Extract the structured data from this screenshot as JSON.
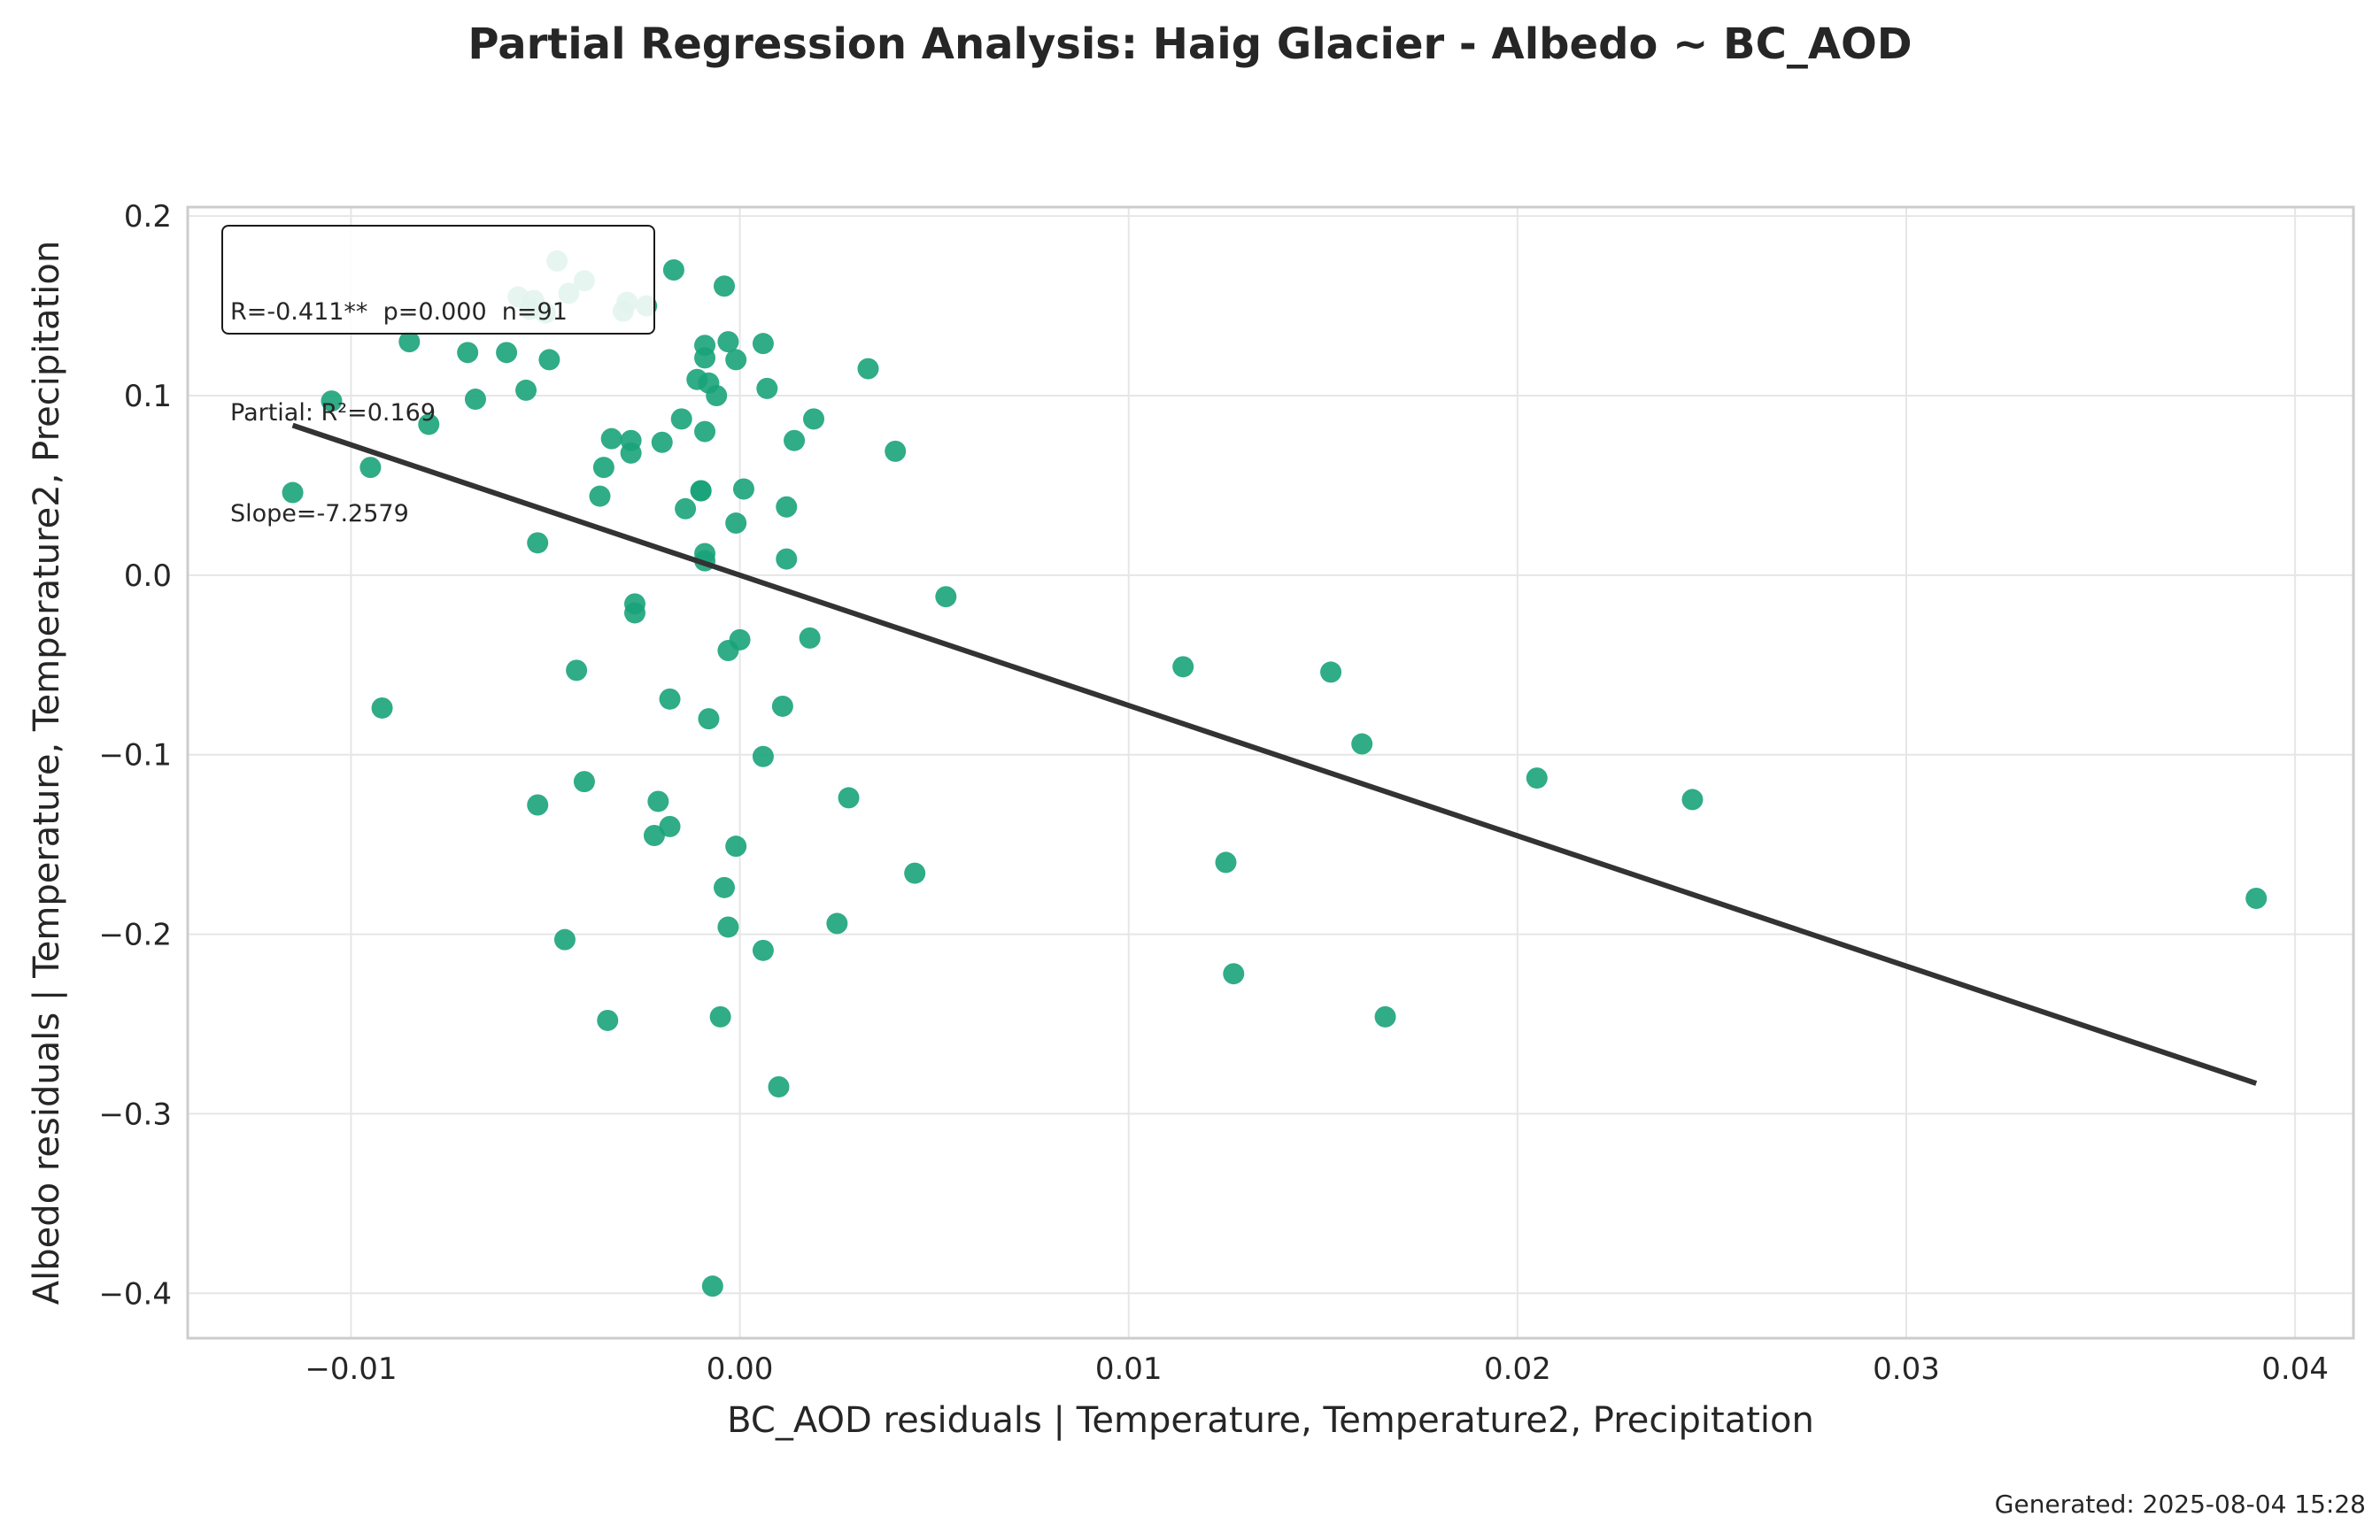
{
  "title": "Partial Regression Analysis: Haig Glacier - Albedo ~ BC_AOD",
  "footer": "Generated: 2025-08-04 15:28",
  "stats_box": {
    "line1": "R=-0.411**  p=0.000  n=91",
    "line2": "Partial: R²=0.169",
    "line3": "Slope=-7.2579"
  },
  "colors": {
    "points": "#1aa37a",
    "fit_line": "#333333",
    "grid": "#e6e6e6",
    "spine": "#cccccc",
    "text": "#262626"
  },
  "chart_data": {
    "type": "scatter",
    "title": "Partial Regression Analysis: Haig Glacier - Albedo ~ BC_AOD",
    "xlabel": "BC_AOD residuals | Temperature, Temperature2, Precipitation",
    "ylabel": "Albedo residuals | Temperature, Temperature2, Precipitation",
    "xlim": [
      -0.0142,
      0.0415
    ],
    "ylim": [
      -0.425,
      0.205
    ],
    "xticks": [
      -0.01,
      0.0,
      0.01,
      0.02,
      0.03,
      0.04
    ],
    "xtick_labels": [
      "−0.01",
      "0.00",
      "0.01",
      "0.02",
      "0.03",
      "0.04"
    ],
    "yticks": [
      0.2,
      0.1,
      0.0,
      -0.1,
      -0.2,
      -0.3,
      -0.4
    ],
    "ytick_labels": [
      "0.2",
      "0.1",
      "0.0",
      "−0.1",
      "−0.2",
      "−0.3",
      "−0.4"
    ],
    "grid": true,
    "fit_line": {
      "slope": -7.2579,
      "x_range": [
        -0.0115,
        0.039
      ]
    },
    "points": [
      [
        -0.0115,
        0.046
      ],
      [
        -0.0105,
        0.097
      ],
      [
        -0.0095,
        0.06
      ],
      [
        -0.0092,
        -0.074
      ],
      [
        -0.0085,
        0.13
      ],
      [
        -0.008,
        0.084
      ],
      [
        -0.007,
        0.124
      ],
      [
        -0.0068,
        0.098
      ],
      [
        -0.006,
        0.124
      ],
      [
        -0.0057,
        0.155
      ],
      [
        -0.0055,
        0.103
      ],
      [
        -0.0054,
        0.148
      ],
      [
        -0.0053,
        0.153
      ],
      [
        -0.0052,
        0.018
      ],
      [
        -0.0052,
        -0.128
      ],
      [
        -0.005,
        0.146
      ],
      [
        -0.0049,
        0.12
      ],
      [
        -0.0047,
        0.175
      ],
      [
        -0.0045,
        -0.203
      ],
      [
        -0.0044,
        0.157
      ],
      [
        -0.0042,
        -0.053
      ],
      [
        -0.004,
        0.164
      ],
      [
        -0.004,
        -0.115
      ],
      [
        -0.0036,
        0.044
      ],
      [
        -0.0035,
        0.06
      ],
      [
        -0.0034,
        -0.248
      ],
      [
        -0.0033,
        0.076
      ],
      [
        -0.003,
        0.147
      ],
      [
        -0.0029,
        0.152
      ],
      [
        -0.0028,
        0.075
      ],
      [
        -0.0028,
        0.068
      ],
      [
        -0.0027,
        -0.016
      ],
      [
        -0.0027,
        -0.021
      ],
      [
        -0.0024,
        0.15
      ],
      [
        -0.0022,
        -0.145
      ],
      [
        -0.0021,
        -0.126
      ],
      [
        -0.002,
        0.074
      ],
      [
        -0.0018,
        -0.14
      ],
      [
        -0.0018,
        -0.069
      ],
      [
        -0.0017,
        0.17
      ],
      [
        -0.0015,
        0.087
      ],
      [
        -0.0014,
        0.037
      ],
      [
        -0.0011,
        0.109
      ],
      [
        -0.001,
        0.047
      ],
      [
        -0.001,
        0.047
      ],
      [
        -0.0009,
        0.08
      ],
      [
        -0.0009,
        0.128
      ],
      [
        -0.0009,
        0.121
      ],
      [
        -0.0009,
        0.012
      ],
      [
        -0.0009,
        0.008
      ],
      [
        -0.0008,
        0.107
      ],
      [
        -0.0008,
        -0.08
      ],
      [
        -0.0007,
        -0.396
      ],
      [
        -0.0006,
        0.1
      ],
      [
        -0.0005,
        -0.246
      ],
      [
        -0.0004,
        0.161
      ],
      [
        -0.0004,
        -0.174
      ],
      [
        -0.0003,
        0.13
      ],
      [
        -0.0003,
        -0.042
      ],
      [
        -0.0003,
        -0.196
      ],
      [
        -0.0001,
        0.029
      ],
      [
        -0.0001,
        -0.151
      ],
      [
        -0.0001,
        0.12
      ],
      [
        0.0,
        -0.036
      ],
      [
        0.0001,
        0.048
      ],
      [
        0.0006,
        0.129
      ],
      [
        0.0006,
        -0.209
      ],
      [
        0.0006,
        -0.101
      ],
      [
        0.0007,
        0.104
      ],
      [
        0.001,
        -0.285
      ],
      [
        0.0011,
        -0.073
      ],
      [
        0.0012,
        0.038
      ],
      [
        0.0012,
        0.009
      ],
      [
        0.0014,
        0.075
      ],
      [
        0.0018,
        -0.035
      ],
      [
        0.0019,
        0.087
      ],
      [
        0.0025,
        -0.194
      ],
      [
        0.0028,
        -0.124
      ],
      [
        0.0033,
        0.115
      ],
      [
        0.004,
        0.069
      ],
      [
        0.0045,
        -0.166
      ],
      [
        0.0053,
        -0.012
      ],
      [
        0.0114,
        -0.051
      ],
      [
        0.0125,
        -0.16
      ],
      [
        0.0127,
        -0.222
      ],
      [
        0.0152,
        -0.054
      ],
      [
        0.016,
        -0.094
      ],
      [
        0.0166,
        -0.246
      ],
      [
        0.0205,
        -0.113
      ],
      [
        0.0245,
        -0.125
      ],
      [
        0.039,
        -0.18
      ]
    ]
  }
}
